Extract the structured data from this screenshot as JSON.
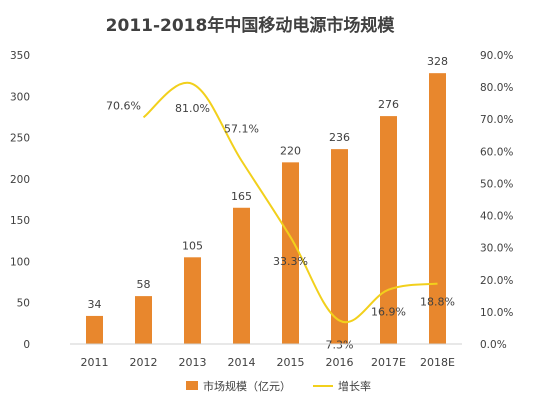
{
  "chart_data": {
    "type": "bar",
    "title": "2011-2018年中国移动电源市场规模",
    "categories": [
      "2011",
      "2012",
      "2013",
      "2014",
      "2015",
      "2016",
      "2017E",
      "2018E"
    ],
    "series": [
      {
        "name": "市场规模（亿元）",
        "type": "bar",
        "axis": "left",
        "color": "#E8872D",
        "values": [
          34,
          58,
          105,
          165,
          220,
          236,
          276,
          328
        ],
        "labels": [
          "34",
          "58",
          "105",
          "165",
          "220",
          "236",
          "276",
          "328"
        ]
      },
      {
        "name": "增长率",
        "type": "line",
        "axis": "right",
        "color": "#F2D01C",
        "values": [
          null,
          70.6,
          81.0,
          57.1,
          33.3,
          7.3,
          16.9,
          18.8
        ],
        "labels": [
          null,
          "70.6%",
          "81.0%",
          "57.1%",
          "33.3%",
          "7.3%",
          "16.9%",
          "18.8%"
        ]
      }
    ],
    "y_left": {
      "ylim": [
        0,
        350
      ],
      "ticks": [
        "0",
        "50",
        "100",
        "150",
        "200",
        "250",
        "300",
        "350"
      ]
    },
    "y_right": {
      "ylim": [
        0,
        90
      ],
      "ticks": [
        "0.0%",
        "10.0%",
        "20.0%",
        "30.0%",
        "40.0%",
        "50.0%",
        "60.0%",
        "70.0%",
        "80.0%",
        "90.0%"
      ]
    },
    "grid": false,
    "legend": "bottom-center"
  }
}
